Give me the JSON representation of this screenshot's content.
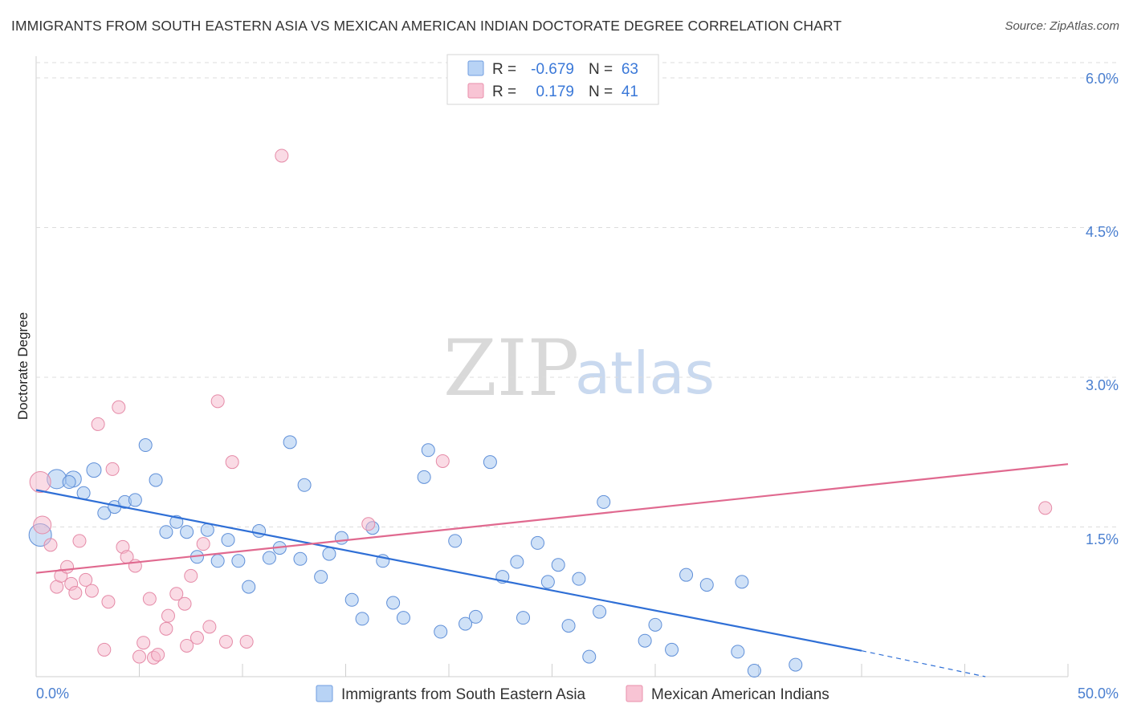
{
  "title": "IMMIGRANTS FROM SOUTH EASTERN ASIA VS MEXICAN AMERICAN INDIAN DOCTORATE DEGREE CORRELATION CHART",
  "source": "Source: ZipAtlas.com",
  "watermark": {
    "zip": "ZIP",
    "atlas": "atlas"
  },
  "legend": {
    "r_label": "R =",
    "n_label": "N =",
    "series1_r": "-0.679",
    "series1_n": "63",
    "series2_r": "0.179",
    "series2_n": "41"
  },
  "chart_data": {
    "type": "scatter",
    "title": "IMMIGRANTS FROM SOUTH EASTERN ASIA VS MEXICAN AMERICAN INDIAN DOCTORATE DEGREE CORRELATION CHART",
    "xlabel": "",
    "ylabel": "Doctorate Degree",
    "xlim": [
      0,
      50
    ],
    "ylim": [
      0,
      6.15
    ],
    "x_tick_labels": [
      "0.0%",
      "50.0%"
    ],
    "y_ticks": [
      1.5,
      3.0,
      4.5,
      6.0
    ],
    "y_tick_labels": [
      "1.5%",
      "3.0%",
      "4.5%",
      "6.0%"
    ],
    "colors": {
      "series1": "#a8c8f0",
      "series1_line": "#2f6fd6",
      "series2": "#f5b8cb",
      "series2_line": "#e0698f"
    },
    "series": [
      {
        "name": "Immigrants from South Eastern Asia",
        "r": -0.679,
        "n": 63,
        "trend": {
          "x0": 0,
          "y0": 1.87,
          "x1": 40,
          "y1": 0.26,
          "dash_to_x": 46,
          "dash_to_y": 0.0
        },
        "points": [
          [
            0.2,
            1.42,
            14
          ],
          [
            1.0,
            1.98,
            12
          ],
          [
            1.8,
            1.98,
            10
          ],
          [
            2.3,
            1.84,
            8
          ],
          [
            2.8,
            2.07,
            9
          ],
          [
            3.3,
            1.64,
            8
          ],
          [
            3.8,
            1.7,
            8
          ],
          [
            4.3,
            1.75,
            8
          ],
          [
            4.8,
            1.77,
            8
          ],
          [
            5.3,
            2.32,
            8
          ],
          [
            5.8,
            1.97,
            8
          ],
          [
            6.3,
            1.45,
            8
          ],
          [
            6.8,
            1.55,
            8
          ],
          [
            7.3,
            1.45,
            8
          ],
          [
            7.8,
            1.2,
            8
          ],
          [
            8.3,
            1.47,
            8
          ],
          [
            8.8,
            1.16,
            8
          ],
          [
            9.3,
            1.37,
            8
          ],
          [
            9.8,
            1.16,
            8
          ],
          [
            10.3,
            0.9,
            8
          ],
          [
            10.8,
            1.46,
            8
          ],
          [
            11.3,
            1.19,
            8
          ],
          [
            11.8,
            1.29,
            8
          ],
          [
            12.3,
            2.35,
            8
          ],
          [
            12.8,
            1.18,
            8
          ],
          [
            13.0,
            1.92,
            8
          ],
          [
            13.8,
            1.0,
            8
          ],
          [
            14.2,
            1.23,
            8
          ],
          [
            14.8,
            1.39,
            8
          ],
          [
            15.3,
            0.77,
            8
          ],
          [
            15.8,
            0.58,
            8
          ],
          [
            16.3,
            1.49,
            8
          ],
          [
            16.8,
            1.16,
            8
          ],
          [
            17.3,
            0.74,
            8
          ],
          [
            17.8,
            0.59,
            8
          ],
          [
            18.8,
            2.0,
            8
          ],
          [
            19.0,
            2.27,
            8
          ],
          [
            19.6,
            0.45,
            8
          ],
          [
            20.3,
            1.36,
            8
          ],
          [
            20.8,
            0.53,
            8
          ],
          [
            21.3,
            0.6,
            8
          ],
          [
            22.0,
            2.15,
            8
          ],
          [
            22.6,
            1.0,
            8
          ],
          [
            23.3,
            1.15,
            8
          ],
          [
            23.6,
            0.59,
            8
          ],
          [
            24.3,
            1.34,
            8
          ],
          [
            24.8,
            0.95,
            8
          ],
          [
            25.3,
            1.12,
            8
          ],
          [
            25.8,
            0.51,
            8
          ],
          [
            26.3,
            0.98,
            8
          ],
          [
            26.8,
            0.2,
            8
          ],
          [
            27.3,
            0.65,
            8
          ],
          [
            27.5,
            1.75,
            8
          ],
          [
            29.5,
            0.36,
            8
          ],
          [
            30.0,
            0.52,
            8
          ],
          [
            30.8,
            0.27,
            8
          ],
          [
            31.5,
            1.02,
            8
          ],
          [
            32.5,
            0.92,
            8
          ],
          [
            34.0,
            0.25,
            8
          ],
          [
            34.2,
            0.95,
            8
          ],
          [
            34.8,
            0.06,
            8
          ],
          [
            36.8,
            0.12,
            8
          ],
          [
            1.6,
            1.95,
            8
          ]
        ]
      },
      {
        "name": "Mexican American Indians",
        "r": 0.179,
        "n": 41,
        "trend": {
          "x0": 0,
          "y0": 1.04,
          "x1": 50,
          "y1": 2.13
        },
        "points": [
          [
            0.2,
            1.95,
            13
          ],
          [
            0.3,
            1.52,
            11
          ],
          [
            0.7,
            1.32,
            8
          ],
          [
            1.0,
            0.9,
            8
          ],
          [
            1.2,
            1.01,
            8
          ],
          [
            1.5,
            1.1,
            8
          ],
          [
            1.7,
            0.93,
            8
          ],
          [
            1.9,
            0.84,
            8
          ],
          [
            2.1,
            1.36,
            8
          ],
          [
            2.4,
            0.97,
            8
          ],
          [
            2.7,
            0.86,
            8
          ],
          [
            3.0,
            2.53,
            8
          ],
          [
            3.3,
            0.27,
            8
          ],
          [
            3.5,
            0.75,
            8
          ],
          [
            3.7,
            2.08,
            8
          ],
          [
            4.0,
            2.7,
            8
          ],
          [
            4.2,
            1.3,
            8
          ],
          [
            4.4,
            1.2,
            8
          ],
          [
            4.8,
            1.11,
            8
          ],
          [
            5.0,
            0.2,
            8
          ],
          [
            5.2,
            0.34,
            8
          ],
          [
            5.5,
            0.78,
            8
          ],
          [
            5.7,
            0.19,
            8
          ],
          [
            5.9,
            0.22,
            8
          ],
          [
            6.3,
            0.48,
            8
          ],
          [
            6.4,
            0.61,
            8
          ],
          [
            6.8,
            0.83,
            8
          ],
          [
            7.2,
            0.73,
            8
          ],
          [
            7.5,
            1.01,
            8
          ],
          [
            7.8,
            0.39,
            8
          ],
          [
            8.1,
            1.33,
            8
          ],
          [
            8.4,
            0.5,
            8
          ],
          [
            8.8,
            2.76,
            8
          ],
          [
            9.2,
            0.35,
            8
          ],
          [
            9.5,
            2.15,
            8
          ],
          [
            7.3,
            0.31,
            8
          ],
          [
            10.2,
            0.35,
            8
          ],
          [
            11.9,
            5.22,
            8
          ],
          [
            16.1,
            1.53,
            8
          ],
          [
            19.7,
            2.16,
            8
          ],
          [
            48.9,
            1.69,
            8
          ]
        ]
      }
    ]
  },
  "bottom_legend": {
    "series1": "Immigrants from South Eastern Asia",
    "series2": "Mexican American Indians"
  }
}
